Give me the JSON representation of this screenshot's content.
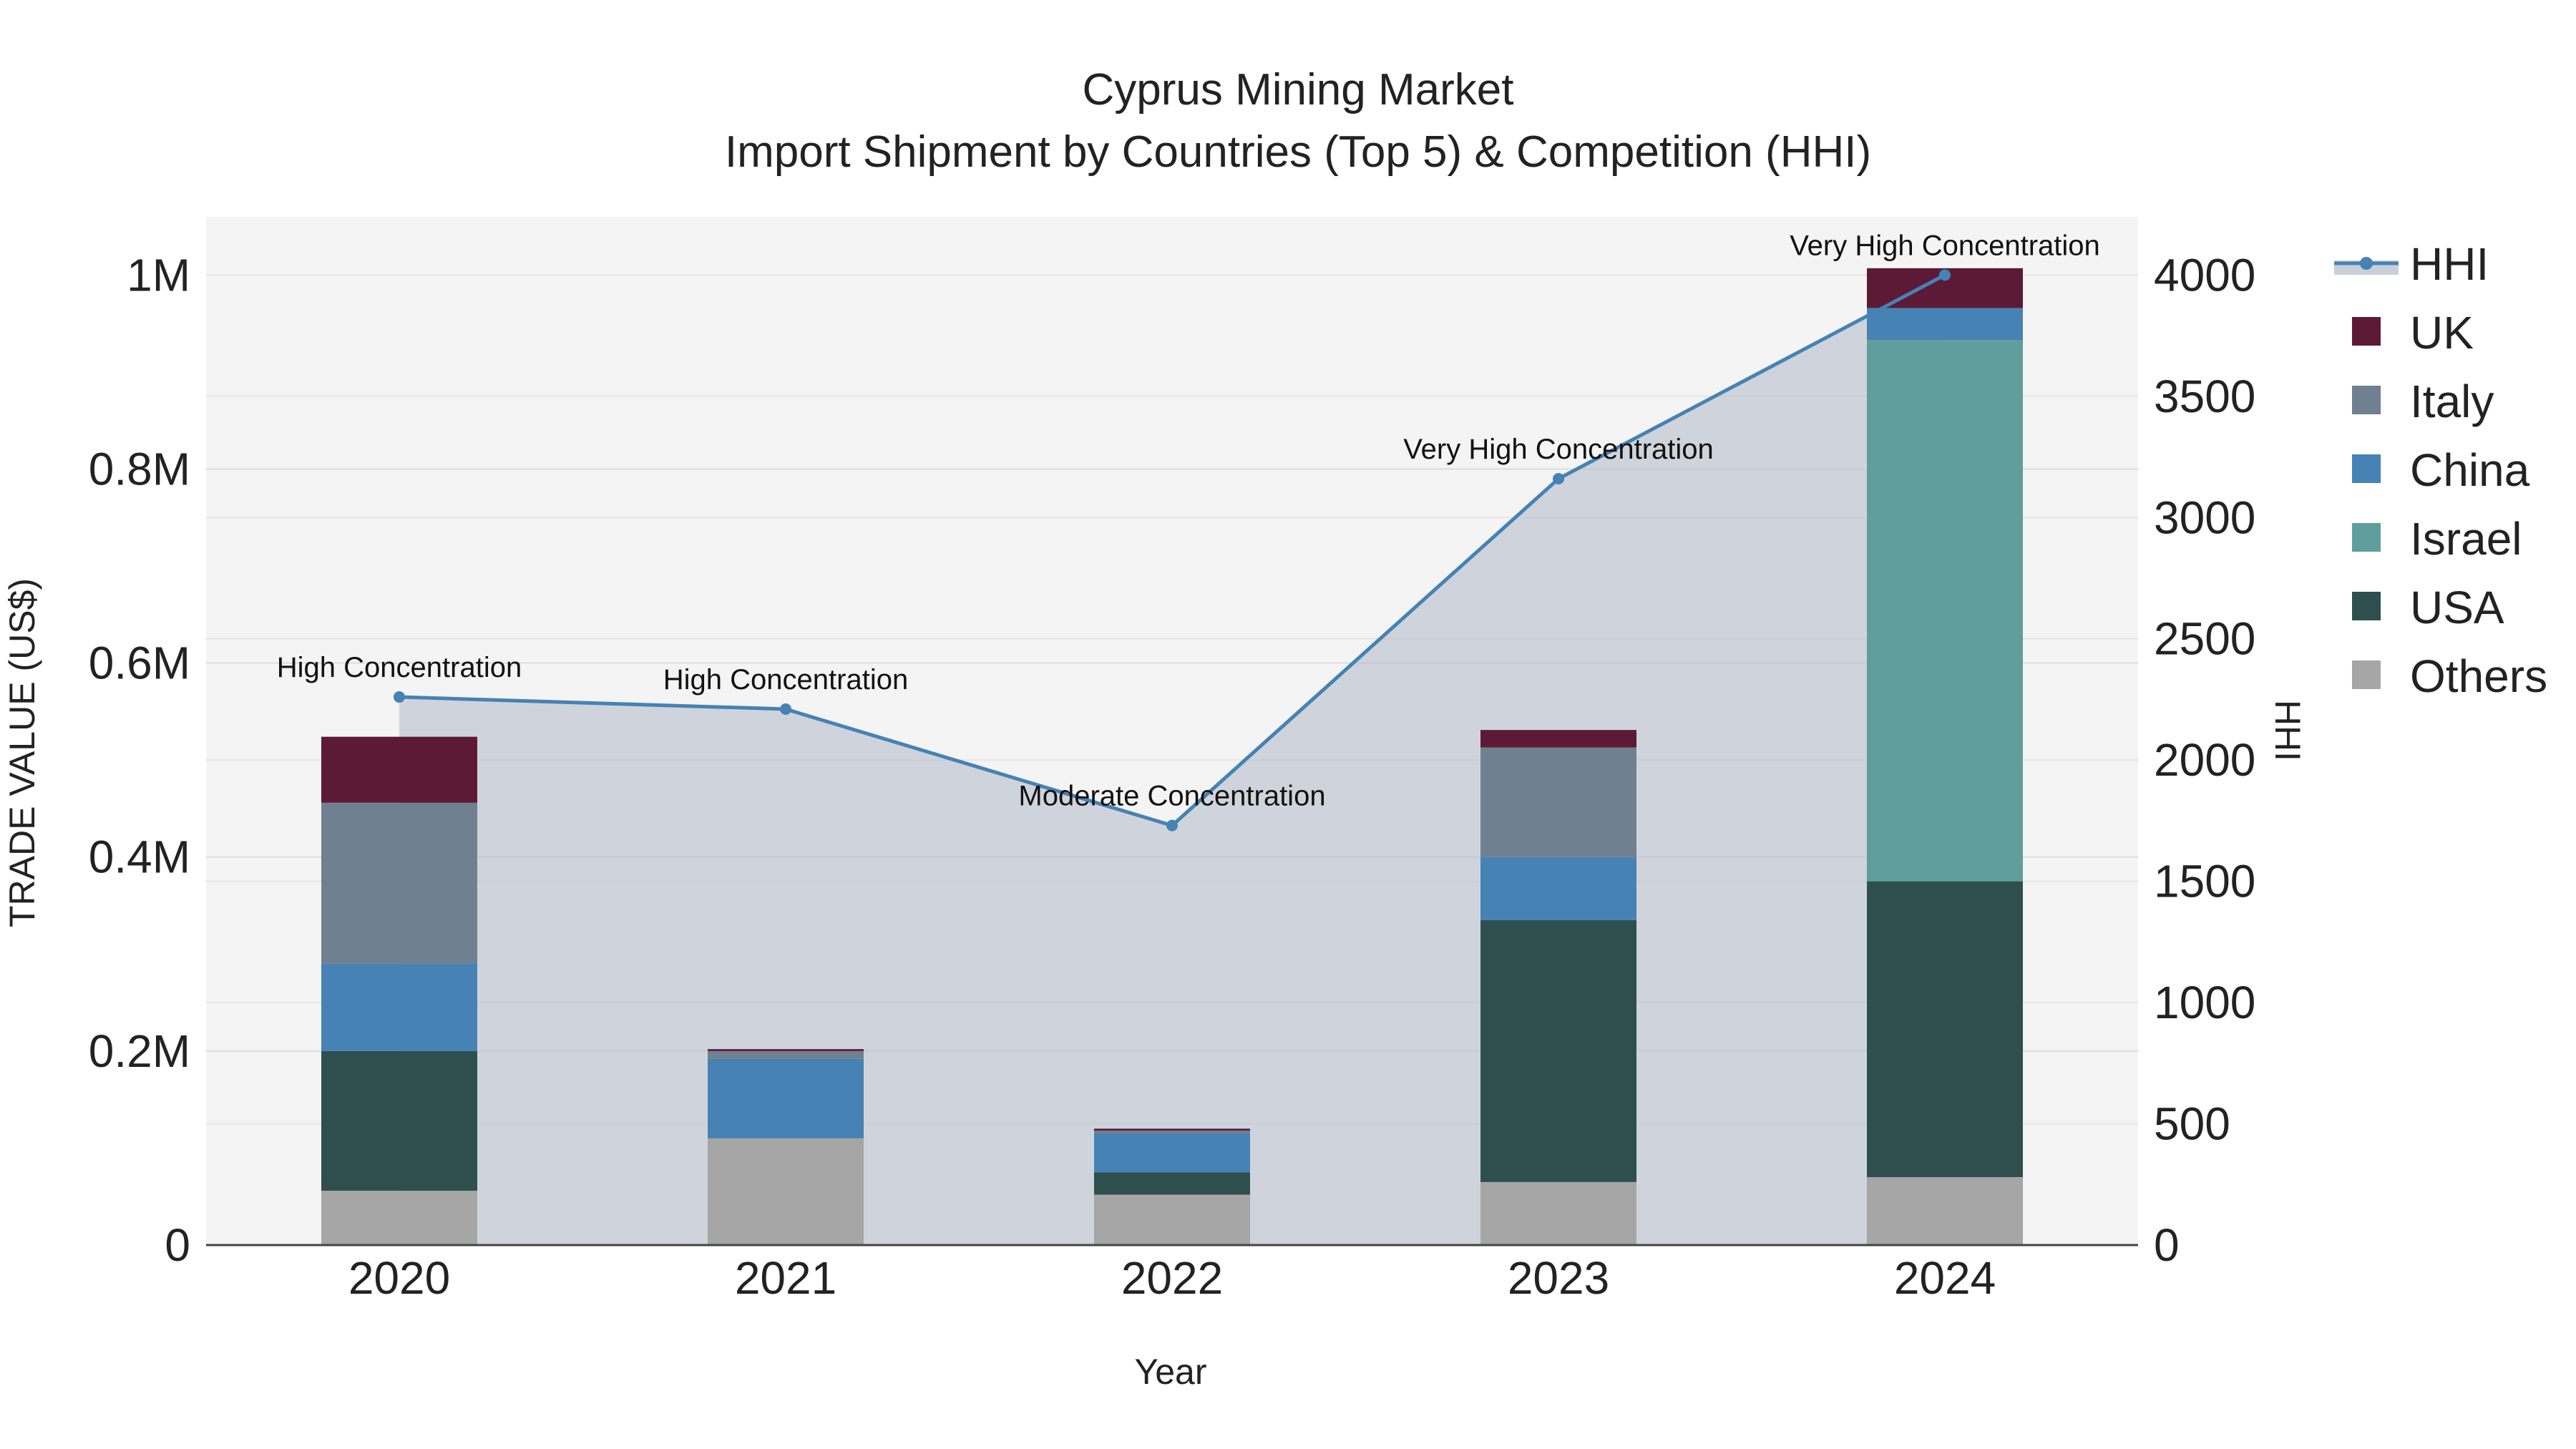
{
  "chart_data": {
    "type": "bar",
    "title": "Cyprus Mining Market",
    "subtitle": "Import Shipment by Countries (Top 5) & Competition (HHI)",
    "xlabel": "Year",
    "ylabel": "TRADE VALUE (US$)",
    "y2label": "HHI",
    "categories": [
      "2020",
      "2021",
      "2022",
      "2023",
      "2024"
    ],
    "ylim": [
      0,
      1060000
    ],
    "y2lim": [
      0,
      4240
    ],
    "yticks": [
      {
        "value": 0,
        "label": "0"
      },
      {
        "value": 200000,
        "label": "0.2M"
      },
      {
        "value": 400000,
        "label": "0.4M"
      },
      {
        "value": 600000,
        "label": "0.6M"
      },
      {
        "value": 800000,
        "label": "0.8M"
      },
      {
        "value": 1000000,
        "label": "1M"
      }
    ],
    "y2ticks": [
      0,
      500,
      1000,
      1500,
      2000,
      2500,
      3000,
      3500,
      4000
    ],
    "series": [
      {
        "name": "Others",
        "color": "#a6a6a6",
        "values": [
          56000,
          110000,
          52000,
          65000,
          70000
        ]
      },
      {
        "name": "USA",
        "color": "#2f4f4f",
        "values": [
          144000,
          0,
          23000,
          270000,
          305000
        ]
      },
      {
        "name": "Israel",
        "color": "#5f9e9a",
        "values": [
          0,
          0,
          0,
          0,
          558000
        ]
      },
      {
        "name": "China",
        "color": "#4682b4",
        "values": [
          90000,
          82000,
          40000,
          65000,
          33000
        ]
      },
      {
        "name": "Italy",
        "color": "#708090",
        "values": [
          166000,
          8000,
          3000,
          113000,
          0
        ]
      },
      {
        "name": "UK",
        "color": "#5c1a37",
        "values": [
          68000,
          2000,
          2000,
          18000,
          41000
        ]
      }
    ],
    "hhi": {
      "name": "HHI",
      "color": "#4682b4",
      "values": [
        2260,
        2210,
        1730,
        3160,
        4000
      ],
      "annotations": [
        "High Concentration",
        "High Concentration",
        "Moderate Concentration",
        "Very High Concentration",
        "Very High Concentration"
      ]
    },
    "legend_order": [
      "HHI",
      "UK",
      "Italy",
      "China",
      "Israel",
      "USA",
      "Others"
    ],
    "legend_position": "right",
    "grid": true,
    "plot_background": "#f4f4f4"
  }
}
